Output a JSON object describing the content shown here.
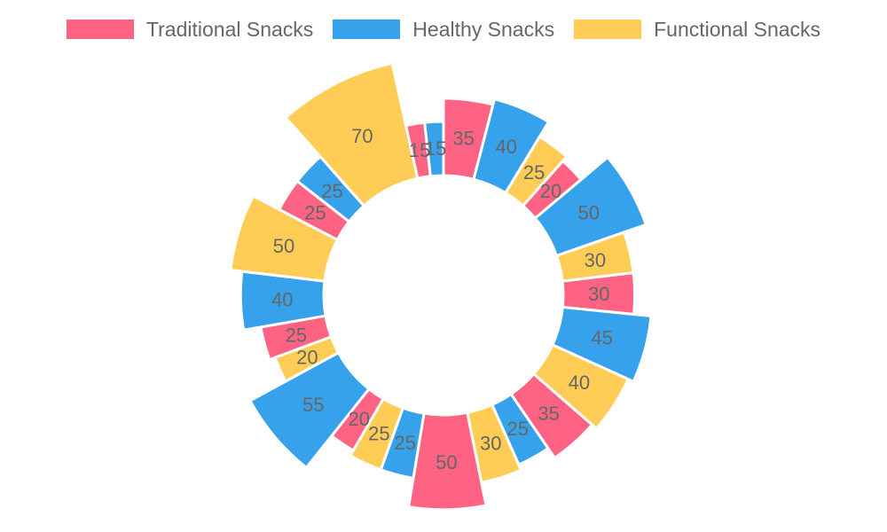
{
  "chart_data": {
    "type": "pie",
    "variant": "doughnut",
    "legend_position": "top",
    "series": [
      {
        "name": "Traditional Snacks",
        "color": "#ff6384"
      },
      {
        "name": "Healthy Snacks",
        "color": "#36a2eb"
      },
      {
        "name": "Functional Snacks",
        "color": "#ffcd56"
      }
    ],
    "slices": [
      {
        "value": 35,
        "series": 0
      },
      {
        "value": 40,
        "series": 1
      },
      {
        "value": 25,
        "series": 2
      },
      {
        "value": 20,
        "series": 0
      },
      {
        "value": 50,
        "series": 1
      },
      {
        "value": 30,
        "series": 2
      },
      {
        "value": 30,
        "series": 0
      },
      {
        "value": 45,
        "series": 1
      },
      {
        "value": 40,
        "series": 2
      },
      {
        "value": 35,
        "series": 0
      },
      {
        "value": 25,
        "series": 1
      },
      {
        "value": 30,
        "series": 2
      },
      {
        "value": 50,
        "series": 0
      },
      {
        "value": 25,
        "series": 1
      },
      {
        "value": 25,
        "series": 2
      },
      {
        "value": 20,
        "series": 0
      },
      {
        "value": 55,
        "series": 1
      },
      {
        "value": 20,
        "series": 2
      },
      {
        "value": 25,
        "series": 0
      },
      {
        "value": 40,
        "series": 1
      },
      {
        "value": 50,
        "series": 2
      },
      {
        "value": 25,
        "series": 0
      },
      {
        "value": 25,
        "series": 1
      },
      {
        "value": 70,
        "series": 2
      },
      {
        "value": 15,
        "series": 0
      },
      {
        "value": 15,
        "series": 1
      }
    ]
  }
}
